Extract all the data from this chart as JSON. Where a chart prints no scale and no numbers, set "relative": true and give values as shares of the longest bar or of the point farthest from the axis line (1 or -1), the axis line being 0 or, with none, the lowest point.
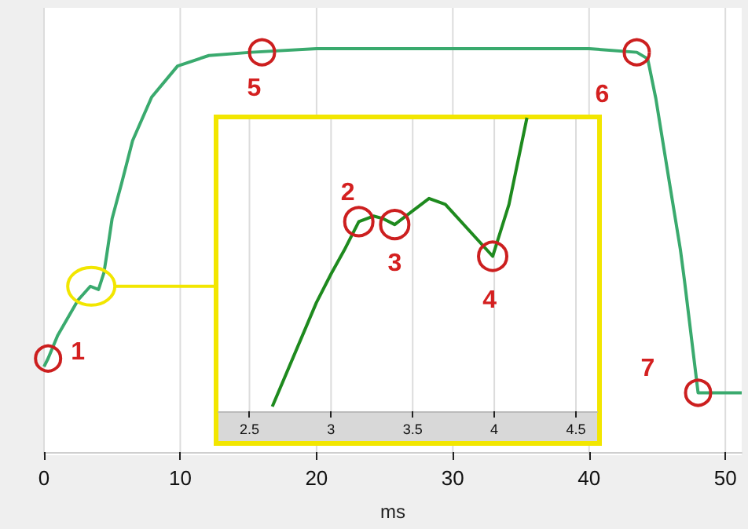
{
  "chart_data": [
    {
      "type": "line",
      "relative": true,
      "color": "#3aaa6e",
      "xlabel": "ms",
      "xlim": [
        0,
        51.2
      ],
      "xticks": [
        0,
        10,
        20,
        30,
        40,
        50
      ],
      "grid": "x",
      "tick_labels": "x",
      "x": [
        0,
        0.3,
        1,
        2.5,
        3.4,
        4,
        4.4,
        4.6,
        5,
        5.7,
        6.5,
        7.9,
        9.8,
        12.1,
        15.2,
        20,
        30,
        40,
        43.5,
        44.3,
        44.9,
        45.9,
        46.7,
        47,
        48,
        51.2
      ],
      "values": [
        0.212,
        0.232,
        0.289,
        0.377,
        0.411,
        0.403,
        0.445,
        0.488,
        0.579,
        0.667,
        0.772,
        0.88,
        0.957,
        0.983,
        0.991,
        1,
        1,
        1,
        0.991,
        0.975,
        0.876,
        0.667,
        0.502,
        0.425,
        0.147,
        0.147
      ],
      "annotations": [
        {
          "text": "1",
          "x": 0.3,
          "y": 0.232
        },
        {
          "text": "5",
          "x": 16,
          "y": 0.991
        },
        {
          "text": "6",
          "x": 43.5,
          "y": 0.991
        },
        {
          "text": "7",
          "x": 48,
          "y": 0.147
        }
      ]
    },
    {
      "type": "line",
      "relative": true,
      "color": "#1e8a1e",
      "xlim": [
        2.31,
        4.63
      ],
      "xticks": [
        2.5,
        3,
        3.5,
        4,
        4.5
      ],
      "grid": "x",
      "tick_labels": "x",
      "x": [
        2.64,
        2.91,
        3,
        3.08,
        3.17,
        3.26,
        3.32,
        3.39,
        3.6,
        3.7,
        3.99,
        4.09,
        4.2
      ],
      "values": [
        0.016,
        0.37,
        0.468,
        0.548,
        0.646,
        0.665,
        0.656,
        0.636,
        0.725,
        0.705,
        0.528,
        0.705,
        1
      ],
      "annotations": [
        {
          "text": "2",
          "x": 3.17,
          "y": 0.646
        },
        {
          "text": "3",
          "x": 3.39,
          "y": 0.636
        },
        {
          "text": "4",
          "x": 3.99,
          "y": 0.528
        }
      ]
    }
  ]
}
